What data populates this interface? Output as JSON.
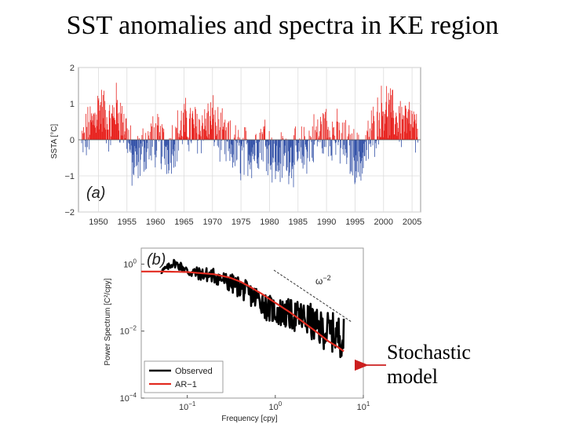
{
  "slide": {
    "title": "SST anomalies and spectra in KE region"
  },
  "colors": {
    "positive": "#e8231f",
    "negative": "#3553a8",
    "observed": "#000000",
    "ar1": "#e22b20",
    "arrow": "#cc1f1f"
  },
  "chart_data": [
    {
      "type": "bar",
      "panel": "(a)",
      "ylabel": "SSTA [°C]",
      "ylim": [
        -2,
        2
      ],
      "yticks": [
        -2,
        -1,
        0,
        1,
        2
      ],
      "xlim": [
        1946.5,
        2006.5
      ],
      "xticks": [
        "1950",
        "1955",
        "1960",
        "1965",
        "1970",
        "1975",
        "1980",
        "1985",
        "1990",
        "1995",
        "2000",
        "2005"
      ],
      "grid": true,
      "series": [
        {
          "x_start": 1947,
          "x_end": 2006,
          "step_years": 0.0833,
          "anchor_years": [
            1947,
            1949,
            1950,
            1951,
            1952,
            1953,
            1954,
            1955,
            1956,
            1957,
            1958,
            1960,
            1962,
            1965,
            1967,
            1970,
            1972,
            1975,
            1977,
            1979,
            1981,
            1983,
            1985,
            1987,
            1990,
            1992,
            1994,
            1996,
            1998,
            2000,
            2001,
            2003,
            2005,
            2006
          ],
          "anchor_values": [
            -0.2,
            0.5,
            0.9,
            0.7,
            0.3,
            0.9,
            0.5,
            0.2,
            -0.8,
            -0.5,
            -0.2,
            0.0,
            -0.3,
            0.4,
            0.3,
            0.5,
            -0.1,
            -0.4,
            -0.3,
            0.1,
            -0.6,
            -0.4,
            -0.5,
            -0.1,
            0.3,
            0.0,
            -0.3,
            -0.6,
            0.2,
            0.9,
            0.7,
            0.5,
            0.4,
            -0.1
          ],
          "note": "monthly anomalies approximated by a smooth trend plus noise"
        }
      ]
    },
    {
      "type": "line",
      "panel": "(b)",
      "xlabel": "Frequency [cpy]",
      "ylabel": "Power Spectrum [C²/cpy]",
      "xscale": "log",
      "yscale": "log",
      "xlim": [
        0.03,
        10
      ],
      "ylim": [
        0.0001,
        3
      ],
      "xtick_labels": [
        {
          "base": "10",
          "exp": "−1",
          "value": 0.1
        },
        {
          "base": "10",
          "exp": "0",
          "value": 1
        },
        {
          "base": "10",
          "exp": "1",
          "value": 10
        }
      ],
      "ytick_labels": [
        {
          "base": "10",
          "exp": "0",
          "value": 1
        },
        {
          "base": "10",
          "exp": "−2",
          "value": 0.01
        },
        {
          "base": "10",
          "exp": "−4",
          "value": 0.0001
        }
      ],
      "series": [
        {
          "name": "Observed",
          "x": [
            0.05,
            0.06,
            0.07,
            0.08,
            0.09,
            0.1,
            0.12,
            0.15,
            0.2,
            0.25,
            0.3,
            0.4,
            0.5,
            0.6,
            0.7,
            0.8,
            1.0,
            1.2,
            1.5,
            2.0,
            2.5,
            3.0,
            4.0,
            5.0,
            6.0
          ],
          "y": [
            0.6,
            0.8,
            1.1,
            0.9,
            0.8,
            0.6,
            0.55,
            0.5,
            0.45,
            0.35,
            0.28,
            0.2,
            0.13,
            0.1,
            0.08,
            0.05,
            0.04,
            0.035,
            0.03,
            0.025,
            0.02,
            0.012,
            0.01,
            0.008,
            0.006
          ]
        },
        {
          "name": "AR−1",
          "x": [
            0.03,
            0.05,
            0.1,
            0.2,
            0.3,
            0.4,
            0.5,
            0.7,
            1.0,
            1.5,
            2.0,
            3.0,
            4.0,
            5.0,
            6.0
          ],
          "y": [
            0.6,
            0.6,
            0.58,
            0.5,
            0.4,
            0.3,
            0.22,
            0.13,
            0.07,
            0.035,
            0.02,
            0.009,
            0.005,
            0.0035,
            0.0025
          ]
        }
      ],
      "reference_line": {
        "label_base": "ω",
        "label_exp": "−2"
      },
      "legend": "bottom-left"
    }
  ],
  "annotation": {
    "line1": "Stochastic",
    "line2": "model"
  }
}
